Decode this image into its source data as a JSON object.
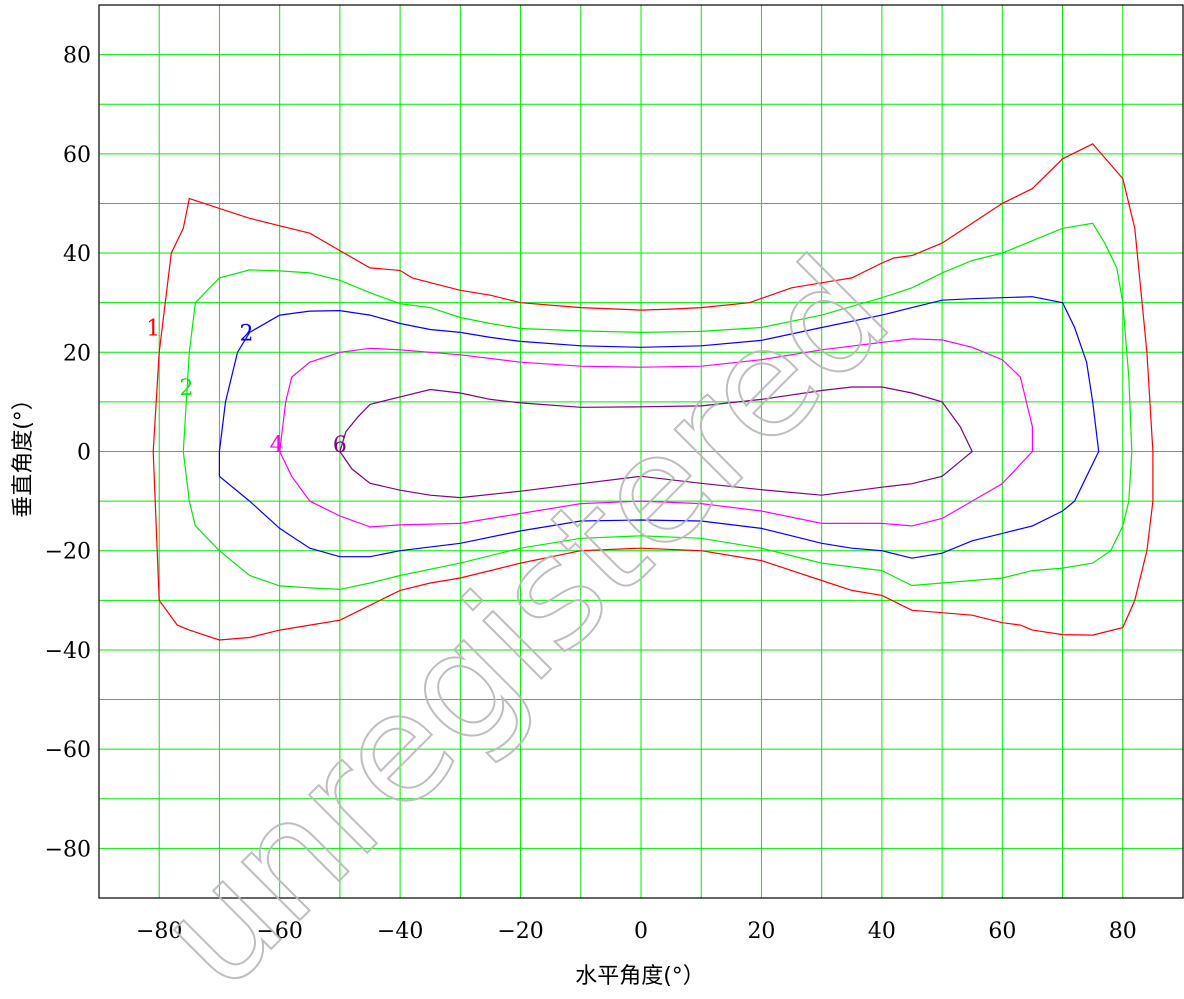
{
  "chart_data": {
    "type": "line",
    "title": "",
    "xlabel": "水平角度(°）",
    "ylabel": "垂直角度(°）",
    "xlim": [
      -90,
      90
    ],
    "ylim": [
      -90,
      90
    ],
    "x_ticks": [
      -80,
      -60,
      -40,
      -20,
      0,
      20,
      40,
      60,
      80
    ],
    "y_ticks": [
      -80,
      -60,
      -40,
      -20,
      0,
      20,
      40,
      60,
      80
    ],
    "x_tick_labels": [
      "−80",
      "−60",
      "−40",
      "−20",
      "0",
      "20",
      "40",
      "60",
      "80"
    ],
    "y_tick_labels": [
      "−80",
      "−60",
      "−40",
      "−20",
      "0",
      "20",
      "40",
      "60",
      "80"
    ],
    "grid": true,
    "grid_step": 10,
    "grid_color": "#00ee00",
    "series": [
      {
        "name": "1",
        "label_at": [
          -81,
          25
        ],
        "color": "#ff0000",
        "x": [
          -81,
          -80,
          -78,
          -76,
          -75,
          -70,
          -65,
          -60,
          -55,
          -50,
          -45,
          -40,
          -38,
          -30,
          -25,
          -20,
          -10,
          0,
          5,
          10,
          18,
          25,
          30,
          35,
          40,
          42,
          45,
          50,
          55,
          60,
          65,
          70,
          75,
          80,
          82,
          84,
          85,
          85,
          84,
          82,
          80,
          75,
          70,
          65,
          63,
          60,
          55,
          50,
          45,
          40,
          35,
          30,
          25,
          20,
          10,
          0,
          -10,
          -20,
          -30,
          -35,
          -40,
          -45,
          -50,
          -55,
          -60,
          -65,
          -70,
          -75,
          -77,
          -80,
          -81
        ],
        "y": [
          0,
          20,
          40,
          45,
          51,
          49,
          47,
          45.5,
          44,
          40.5,
          37,
          36.5,
          35,
          32.5,
          31.5,
          30,
          29,
          28.5,
          28.7,
          29,
          30,
          33,
          34,
          35,
          38,
          39,
          39.5,
          42,
          46,
          50,
          53,
          59,
          62,
          55,
          45,
          20,
          0,
          -10,
          -20,
          -30,
          -35.5,
          -37,
          -36.9,
          -36,
          -35,
          -34.5,
          -33,
          -32.5,
          -32,
          -29,
          -28,
          -26,
          -24,
          -22,
          -20,
          -19.5,
          -20,
          -22.5,
          -25.5,
          -26.5,
          -28,
          -31,
          -34,
          -35,
          -36,
          -37.5,
          -38,
          -36,
          -35,
          -30,
          0
        ]
      },
      {
        "name": "2",
        "label_at": [
          -75.5,
          13
        ],
        "color": "#00ee00",
        "x": [
          -76,
          -75,
          -74,
          -70,
          -65,
          -60,
          -55,
          -50,
          -45,
          -40,
          -35,
          -30,
          -25,
          -20,
          -10,
          0,
          10,
          20,
          30,
          40,
          45,
          50,
          55,
          60,
          65,
          70,
          75,
          77,
          79,
          80,
          81,
          81.5,
          81,
          80,
          78,
          75,
          70,
          65,
          60,
          55,
          50,
          45,
          40,
          30,
          20,
          10,
          0,
          -10,
          -20,
          -30,
          -40,
          -45,
          -50,
          -55,
          -60,
          -65,
          -70,
          -74,
          -75,
          -76
        ],
        "y": [
          0,
          20,
          30,
          35,
          36.6,
          36.4,
          36,
          34.5,
          32,
          29.8,
          29,
          27,
          25.8,
          24.8,
          24.3,
          24,
          24.2,
          25,
          27.5,
          31,
          33,
          36,
          38.5,
          40,
          42.5,
          45,
          46,
          42,
          37,
          30,
          15,
          0,
          -10,
          -15,
          -20,
          -22.5,
          -23.5,
          -24,
          -25.5,
          -26,
          -26.5,
          -27,
          -24,
          -22.5,
          -19.5,
          -17.5,
          -17,
          -17.5,
          -19.5,
          -22.5,
          -25,
          -26.5,
          -27.8,
          -27.5,
          -27.1,
          -25,
          -20,
          -15,
          -10,
          0
        ]
      },
      {
        "name": "2",
        "label_at": [
          -65.5,
          24
        ],
        "color": "#0000ff",
        "x": [
          -70,
          -69,
          -67,
          -65,
          -60,
          -55,
          -50,
          -45,
          -40,
          -35,
          -30,
          -25,
          -20,
          -10,
          0,
          10,
          20,
          30,
          40,
          45,
          50,
          55,
          60,
          65,
          70,
          72,
          74,
          75,
          76,
          76,
          74,
          72,
          70,
          65,
          60,
          55,
          50,
          45,
          40,
          35,
          30,
          25,
          20,
          10,
          0,
          -10,
          -20,
          -30,
          -40,
          -45,
          -50,
          -55,
          -60,
          -65,
          -70,
          -70
        ],
        "y": [
          0,
          10,
          20,
          24,
          27.5,
          28.3,
          28.4,
          27.5,
          25.8,
          24.6,
          24,
          23,
          22.2,
          21.3,
          21,
          21.3,
          22.4,
          25,
          27.5,
          29,
          30.5,
          30.8,
          31,
          31.2,
          30,
          25,
          18,
          10,
          0,
          0,
          -5,
          -10,
          -12,
          -15,
          -16.5,
          -18,
          -20.5,
          -21.5,
          -20,
          -19.5,
          -18.5,
          -17,
          -15.5,
          -14,
          -13.8,
          -14,
          -16,
          -18.5,
          -20,
          -21.2,
          -21.2,
          -19.5,
          -15.5,
          -10,
          -5,
          0
        ]
      },
      {
        "name": "4",
        "label_at": [
          -60.5,
          1.5
        ],
        "color": "#ff00ff",
        "x": [
          -60,
          -59,
          -58,
          -55,
          -50,
          -45,
          -40,
          -30,
          -20,
          -10,
          0,
          10,
          20,
          30,
          40,
          45,
          50,
          55,
          60,
          63,
          65,
          65,
          60,
          55,
          50,
          45,
          40,
          30,
          20,
          10,
          0,
          -10,
          -20,
          -30,
          -40,
          -45,
          -50,
          -55,
          -58,
          -60
        ],
        "y": [
          0,
          10,
          15,
          18,
          20,
          20.8,
          20.5,
          19.5,
          18,
          17.2,
          17,
          17.2,
          18.5,
          20.5,
          22,
          22.7,
          22.5,
          21,
          18.5,
          15,
          5,
          0,
          -6.5,
          -10,
          -13.5,
          -15,
          -14.5,
          -14.5,
          -12,
          -10.5,
          -10,
          -10.5,
          -12.5,
          -14.5,
          -14.8,
          -15.2,
          -13,
          -10,
          -5,
          0
        ]
      },
      {
        "name": "6",
        "label_at": [
          -50,
          1.5
        ],
        "color": "#800080",
        "x": [
          -50,
          -49,
          -47,
          -45,
          -40,
          -35,
          -30,
          -25,
          -20,
          -10,
          0,
          10,
          20,
          30,
          35,
          40,
          45,
          50,
          53,
          55,
          50,
          45,
          40,
          30,
          20,
          10,
          0,
          -10,
          -20,
          -30,
          -35,
          -40,
          -45,
          -48,
          -50
        ],
        "y": [
          0,
          4,
          7,
          9.5,
          11,
          12.5,
          11.8,
          10.5,
          9.8,
          8.9,
          9,
          9.2,
          10.5,
          12.3,
          13,
          13,
          11.8,
          10,
          5,
          0,
          -5,
          -6.5,
          -7.2,
          -8.8,
          -7.7,
          -6.4,
          -5,
          -6.5,
          -8,
          -9.3,
          -8.8,
          -7.8,
          -6.4,
          -3.5,
          0
        ]
      }
    ]
  },
  "watermark": {
    "text": "unregistered",
    "color": "#b8b8b8"
  }
}
